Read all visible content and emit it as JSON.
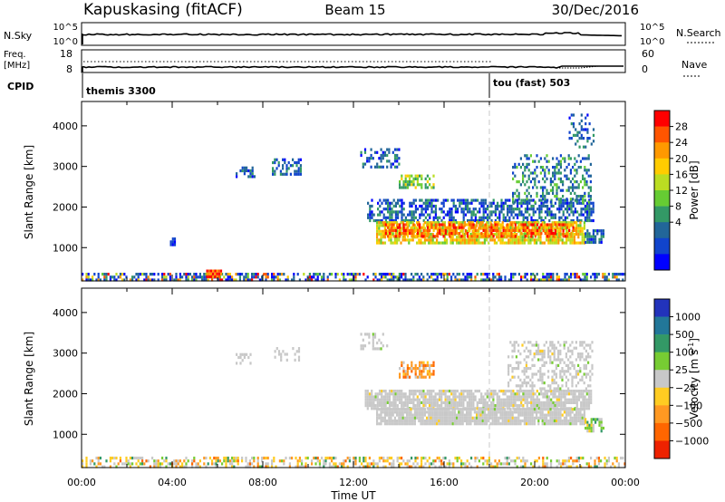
{
  "header": {
    "station": "Kapuskasing (fitACF)",
    "beam": "Beam 15",
    "date": "30/Dec/2016"
  },
  "nsky_panel": {
    "left_label": "N.Sky",
    "left_ticks": [
      "10^5",
      "10^0"
    ],
    "right_label": "N.Search",
    "right_ticks": [
      "10^5",
      "10^0"
    ]
  },
  "freq_panel": {
    "left_label_1": "Freq.",
    "left_label_2": "[MHz]",
    "left_ticks": [
      "18",
      "8"
    ],
    "right_label": "Nave",
    "right_ticks": [
      "60",
      "0"
    ]
  },
  "cpid": {
    "label": "CPID",
    "segments": [
      {
        "name": "themis 3300",
        "start_hour": 0
      },
      {
        "name": "tou (fast) 503",
        "start_hour": 18
      }
    ]
  },
  "time_axis": {
    "label": "Time UT",
    "ticks": [
      "00:00",
      "04:00",
      "08:00",
      "12:00",
      "16:00",
      "20:00",
      "00:00"
    ]
  },
  "power_colorbar": {
    "label": "Power [dB]",
    "ticks": [
      "28",
      "24",
      "20",
      "16",
      "12",
      "8",
      "4"
    ],
    "colors": [
      "#ff0000",
      "#ff5500",
      "#ff9900",
      "#ffcc00",
      "#bbdd22",
      "#66cc33",
      "#339966",
      "#226699",
      "#1144cc",
      "#0000ff"
    ]
  },
  "velocity_colorbar": {
    "label_main": "Velocity [m s",
    "label_sup": "-1",
    "label_end": "]",
    "ticks": [
      "1000",
      "500",
      "100",
      "25",
      "−25",
      "−100",
      "−500",
      "−1000"
    ],
    "colors": [
      "#2233bb",
      "#227799",
      "#339966",
      "#77cc33",
      "#c8c8c8",
      "#ffcc22",
      "#ff9922",
      "#ff6600",
      "#ee2200"
    ]
  },
  "chart_data": [
    {
      "type": "heatmap",
      "name": "power",
      "ylabel": "Slant Range [km]",
      "xlabel": "",
      "x_range_hours": [
        0,
        24
      ],
      "ylim": [
        180,
        4600
      ],
      "yticks": [
        1000,
        2000,
        3000,
        4000
      ],
      "cpid_change_hour": 18,
      "regions": [
        {
          "t0": 0.0,
          "t1": 24.0,
          "r0": 190,
          "r1": 380,
          "level": "noise",
          "density": 0.55
        },
        {
          "t0": 5.5,
          "t1": 6.2,
          "r0": 280,
          "r1": 460,
          "level": 28,
          "density": 0.9
        },
        {
          "t0": 3.9,
          "t1": 4.1,
          "r0": 1100,
          "r1": 1250,
          "level": 8,
          "density": 0.8
        },
        {
          "t0": 6.8,
          "t1": 7.6,
          "r0": 2750,
          "r1": 3000,
          "level": 8,
          "density": 0.5
        },
        {
          "t0": 8.4,
          "t1": 9.7,
          "r0": 2800,
          "r1": 3200,
          "level": 8,
          "density": 0.45
        },
        {
          "t0": 12.3,
          "t1": 14.0,
          "r0": 3000,
          "r1": 3450,
          "level": 8,
          "density": 0.45
        },
        {
          "t0": 12.6,
          "t1": 22.6,
          "r0": 1650,
          "r1": 2200,
          "level": 8,
          "density": 0.6
        },
        {
          "t0": 13.0,
          "t1": 22.2,
          "r0": 1100,
          "r1": 1650,
          "level": 20,
          "density": 0.75
        },
        {
          "t0": 13.3,
          "t1": 21.8,
          "r0": 1250,
          "r1": 1600,
          "level": 26,
          "density": 0.65
        },
        {
          "t0": 14.0,
          "t1": 15.5,
          "r0": 2450,
          "r1": 2800,
          "level": 16,
          "density": 0.6
        },
        {
          "t0": 19.0,
          "t1": 22.5,
          "r0": 2100,
          "r1": 3300,
          "level": 10,
          "density": 0.35
        },
        {
          "t0": 21.5,
          "t1": 22.6,
          "r0": 3500,
          "r1": 4300,
          "level": 8,
          "density": 0.3
        },
        {
          "t0": 22.2,
          "t1": 23.0,
          "r0": 1150,
          "r1": 1450,
          "level": 8,
          "density": 0.7
        }
      ]
    },
    {
      "type": "heatmap",
      "name": "velocity",
      "ylabel": "Slant Range [km]",
      "xlabel": "Time UT",
      "x_range_hours": [
        0,
        24
      ],
      "ylim": [
        180,
        4600
      ],
      "yticks": [
        1000,
        2000,
        3000,
        4000
      ],
      "cpid_change_hour": 18,
      "regions": [
        {
          "t0": 0.0,
          "t1": 24.0,
          "r0": 190,
          "r1": 450,
          "level": "mixed",
          "density": 0.45
        },
        {
          "t0": 12.5,
          "t1": 22.5,
          "r0": 1650,
          "r1": 2100,
          "level": 0,
          "density": 0.85
        },
        {
          "t0": 13.0,
          "t1": 22.2,
          "r0": 1250,
          "r1": 1650,
          "level": 0,
          "density": 0.9
        },
        {
          "t0": 14.0,
          "t1": 15.5,
          "r0": 2400,
          "r1": 2800,
          "level": -100,
          "density": 0.6
        },
        {
          "t0": 18.8,
          "t1": 22.5,
          "r0": 2100,
          "r1": 3300,
          "level": 0,
          "density": 0.4
        },
        {
          "t0": 6.8,
          "t1": 7.5,
          "r0": 2750,
          "r1": 3000,
          "level": 0,
          "density": 0.4
        },
        {
          "t0": 8.5,
          "t1": 9.6,
          "r0": 2800,
          "r1": 3150,
          "level": 0,
          "density": 0.35
        },
        {
          "t0": 22.2,
          "t1": 23.0,
          "r0": 1100,
          "r1": 1400,
          "level": 50,
          "density": 0.6
        },
        {
          "t0": 12.3,
          "t1": 13.5,
          "r0": 3100,
          "r1": 3500,
          "level": 0,
          "density": 0.3
        }
      ]
    }
  ]
}
